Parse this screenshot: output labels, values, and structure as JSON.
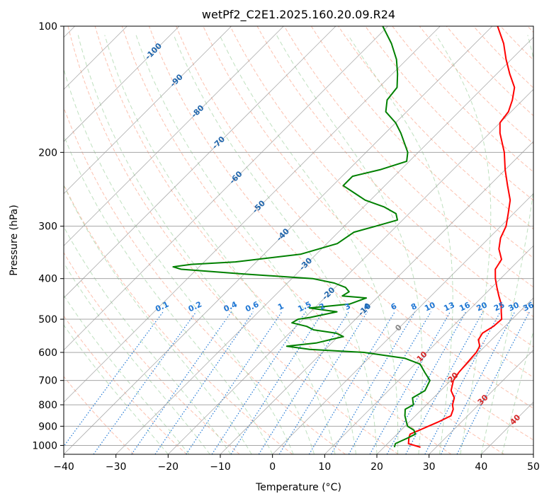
{
  "chart_data": {
    "type": "line",
    "chart_kind": "skew-T log-P diagram",
    "title": "wetPf2_C2E1.2025.160.20.09.R24",
    "xlabel": "Temperature (°C)",
    "ylabel": "Pressure (hPa)",
    "xlim": [
      -40,
      50
    ],
    "ylim": [
      1050,
      100
    ],
    "y_scale": "log",
    "grid": true,
    "x_ticks": [
      "−40",
      "−30",
      "−20",
      "−10",
      "0",
      "10",
      "20",
      "30",
      "40",
      "50"
    ],
    "x_tick_values": [
      -40,
      -30,
      -20,
      -10,
      0,
      10,
      20,
      30,
      40,
      50
    ],
    "y_ticks": [
      "100",
      "200",
      "300",
      "400",
      "500",
      "600",
      "700",
      "800",
      "900",
      "1000"
    ],
    "y_tick_values": [
      100,
      200,
      300,
      400,
      500,
      600,
      700,
      800,
      900,
      1000
    ],
    "colors": {
      "temperature": "#ff0000",
      "dewpoint": "#008000",
      "isotherm_grid": "#999999",
      "dry_adiabat": "#fa8e6e",
      "moist_adiabat": "#9ccf9c",
      "mixing_ratio": "#1f77d4",
      "isotherm_label": "#2166ac",
      "theta_label": "#d62728"
    },
    "series": [
      {
        "name": "temperature",
        "color": "#ff0000",
        "pressure": [
          1010,
          990,
          960,
          940,
          920,
          900,
          880,
          850,
          820,
          800,
          770,
          740,
          700,
          670,
          640,
          600,
          580,
          560,
          540,
          520,
          500,
          480,
          460,
          440,
          420,
          400,
          380,
          360,
          340,
          320,
          300,
          280,
          260,
          240,
          220,
          200,
          180,
          170,
          160,
          150,
          140,
          130,
          120,
          110,
          100
        ],
        "temp_c": [
          27.0,
          24.0,
          23.0,
          22.5,
          23.5,
          24.5,
          25.5,
          26.8,
          26.0,
          25.0,
          24.0,
          22.0,
          20.5,
          20.0,
          19.8,
          19.5,
          19.0,
          17.5,
          17.0,
          17.8,
          18.0,
          16.5,
          15.0,
          13.0,
          11.0,
          9.0,
          7.2,
          6.5,
          4.0,
          2.2,
          1.0,
          -1.0,
          -3.2,
          -6.5,
          -10.0,
          -13.5,
          -18.0,
          -20.0,
          -20.5,
          -22.0,
          -24.0,
          -27.5,
          -31.0,
          -34.5,
          -39.0
        ]
      },
      {
        "name": "dewpoint",
        "color": "#008000",
        "pressure": [
          1010,
          990,
          960,
          940,
          920,
          900,
          880,
          850,
          820,
          800,
          770,
          740,
          700,
          670,
          640,
          620,
          600,
          590,
          580,
          570,
          550,
          540,
          530,
          520,
          510,
          500,
          495,
          480,
          470,
          460,
          445,
          440,
          430,
          420,
          410,
          400,
          390,
          380,
          375,
          370,
          365,
          350,
          330,
          310,
          300,
          290,
          280,
          270,
          260,
          240,
          228,
          220,
          210,
          200,
          180,
          170,
          160,
          150,
          140,
          130,
          120,
          110,
          100
        ],
        "temp_c": [
          22.0,
          21.5,
          22.8,
          23.5,
          22.5,
          20.5,
          19.5,
          18.0,
          16.8,
          17.5,
          16.0,
          17.0,
          16.0,
          13.5,
          11.0,
          7.0,
          -2.0,
          -13.0,
          -18.0,
          -13.0,
          -9.0,
          -11.0,
          -16.0,
          -18.0,
          -21.5,
          -21.0,
          -19.0,
          -15.0,
          -21.0,
          -14.0,
          -12.0,
          -17.0,
          -16.5,
          -18.0,
          -21.0,
          -26.0,
          -40.0,
          -53.0,
          -55.0,
          -52.0,
          -44.0,
          -33.0,
          -28.0,
          -27.0,
          -24.0,
          -21.0,
          -22.5,
          -26.0,
          -31.0,
          -38.0,
          -38.0,
          -34.0,
          -30.5,
          -32.0,
          -37.0,
          -40.0,
          -44.0,
          -46.0,
          -46.5,
          -49.0,
          -52.0,
          -56.0,
          -61.0
        ]
      }
    ],
    "isotherm_labels": [
      "-100",
      "-90",
      "-80",
      "-70",
      "-60",
      "-50",
      "-40",
      "-30",
      "-20",
      "-10",
      "0",
      "10",
      "20",
      "30",
      "40"
    ],
    "mixing_ratio_labels": [
      "0.1",
      "0.2",
      "0.4",
      "0.6",
      "1",
      "1.5",
      "2",
      "3",
      "4",
      "6",
      "8",
      "10",
      "13",
      "16",
      "20",
      "25",
      "30",
      "36"
    ],
    "dry_adiabat_labels": [
      "10",
      "20",
      "30",
      "40"
    ]
  }
}
